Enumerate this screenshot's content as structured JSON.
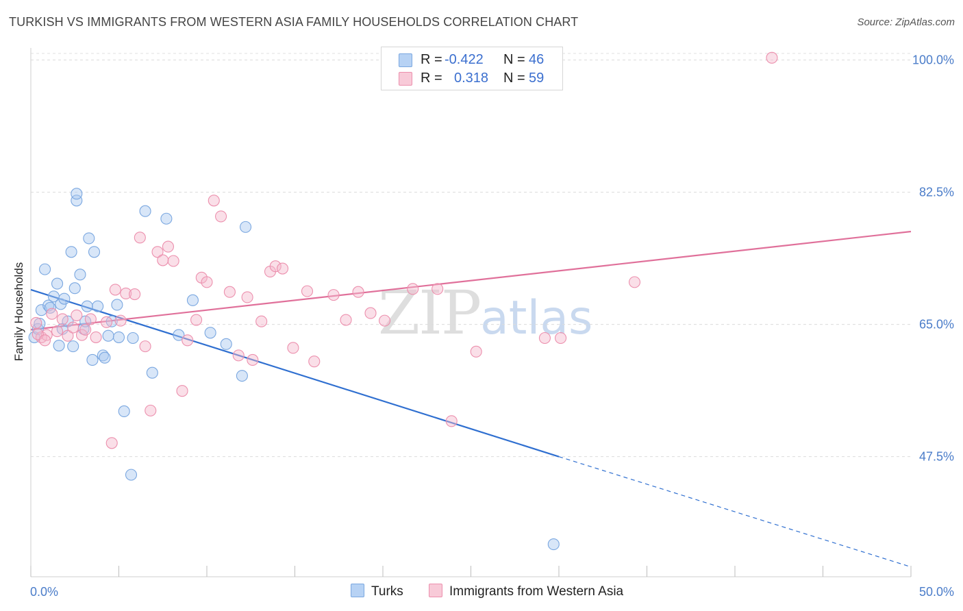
{
  "header": {
    "title": "TURKISH VS IMMIGRANTS FROM WESTERN ASIA FAMILY HOUSEHOLDS CORRELATION CHART",
    "source": "Source: ZipAtlas.com"
  },
  "watermark": {
    "zip": "ZIP",
    "atlas": "atlas"
  },
  "legend_top": {
    "rows": [
      {
        "r_label": "R =",
        "r_value": "-0.422",
        "n_label": "N =",
        "n_value": "46",
        "color": "#a9c8f0"
      },
      {
        "r_label": "R =",
        "r_value": "0.318",
        "n_label": "N =",
        "n_value": "59",
        "color": "#f5b8cb"
      }
    ]
  },
  "legend_bottom": {
    "items": [
      {
        "label": "Turks",
        "color": "#a9c8f0"
      },
      {
        "label": "Immigrants from Western Asia",
        "color": "#f5b8cb"
      }
    ]
  },
  "chart_data": {
    "type": "scatter",
    "ylabel": "Family Households",
    "xlim": [
      0,
      50
    ],
    "ylim": [
      31.6,
      101.6
    ],
    "x_tick_labels": [
      "0.0%",
      "50.0%"
    ],
    "y_ticks": [
      47.5,
      65.0,
      82.5,
      100.0
    ],
    "y_tick_labels": [
      "47.5%",
      "65.0%",
      "82.5%",
      "100.0%"
    ],
    "grid": "horizontal dashed",
    "legend_position": "top-center",
    "series": [
      {
        "name": "Turks",
        "color": "#a9c8f0",
        "stroke": "#7aa7e0",
        "trend_color": "#2f6fd0",
        "trend": {
          "x0": 0,
          "y0": 69.6,
          "x1": 30,
          "y1": 47.5,
          "dashed_to_x": 50,
          "dashed_to_y": 32.9
        },
        "points": [
          [
            0.2,
            63.3
          ],
          [
            0.4,
            64.4
          ],
          [
            0.5,
            65.1
          ],
          [
            0.6,
            66.9
          ],
          [
            0.8,
            72.3
          ],
          [
            1.0,
            67.5
          ],
          [
            1.1,
            67.2
          ],
          [
            1.3,
            68.7
          ],
          [
            1.5,
            70.4
          ],
          [
            1.6,
            62.2
          ],
          [
            1.7,
            67.7
          ],
          [
            1.8,
            64.4
          ],
          [
            1.9,
            68.4
          ],
          [
            2.1,
            65.4
          ],
          [
            2.3,
            74.6
          ],
          [
            2.4,
            62.1
          ],
          [
            2.5,
            69.8
          ],
          [
            2.6,
            81.4
          ],
          [
            2.6,
            82.3
          ],
          [
            2.8,
            71.6
          ],
          [
            3.0,
            64.4
          ],
          [
            3.1,
            65.4
          ],
          [
            3.2,
            67.4
          ],
          [
            3.3,
            76.4
          ],
          [
            3.5,
            60.3
          ],
          [
            3.6,
            74.6
          ],
          [
            3.8,
            67.4
          ],
          [
            4.1,
            60.9
          ],
          [
            4.2,
            60.6
          ],
          [
            4.4,
            63.5
          ],
          [
            4.6,
            65.4
          ],
          [
            4.9,
            67.6
          ],
          [
            5.0,
            63.3
          ],
          [
            5.3,
            53.5
          ],
          [
            5.7,
            45.1
          ],
          [
            5.8,
            63.2
          ],
          [
            6.5,
            80.0
          ],
          [
            6.9,
            58.6
          ],
          [
            7.7,
            79.0
          ],
          [
            8.4,
            63.6
          ],
          [
            9.2,
            68.2
          ],
          [
            10.2,
            63.9
          ],
          [
            11.1,
            62.4
          ],
          [
            12.0,
            58.2
          ],
          [
            12.2,
            77.9
          ],
          [
            29.7,
            35.9
          ]
        ]
      },
      {
        "name": "Immigrants from Western Asia",
        "color": "#f5b8cb",
        "stroke": "#ec8fad",
        "trend_color": "#e0709a",
        "trend": {
          "x0": 0,
          "y0": 64.3,
          "x1": 50,
          "y1": 77.3
        },
        "points": [
          [
            0.6,
            63.3
          ],
          [
            0.9,
            63.6
          ],
          [
            1.2,
            66.4
          ],
          [
            1.5,
            64.1
          ],
          [
            1.8,
            65.7
          ],
          [
            2.1,
            63.5
          ],
          [
            2.4,
            64.6
          ],
          [
            2.6,
            66.2
          ],
          [
            2.9,
            63.6
          ],
          [
            3.1,
            64.3
          ],
          [
            3.4,
            65.7
          ],
          [
            3.7,
            63.3
          ],
          [
            4.3,
            65.3
          ],
          [
            4.6,
            49.3
          ],
          [
            4.8,
            69.6
          ],
          [
            5.1,
            65.5
          ],
          [
            5.4,
            69.1
          ],
          [
            5.9,
            69.0
          ],
          [
            6.2,
            76.5
          ],
          [
            6.5,
            62.1
          ],
          [
            6.8,
            53.6
          ],
          [
            7.2,
            74.6
          ],
          [
            7.5,
            73.5
          ],
          [
            7.8,
            75.3
          ],
          [
            8.1,
            73.4
          ],
          [
            8.6,
            56.2
          ],
          [
            8.9,
            62.9
          ],
          [
            9.4,
            65.6
          ],
          [
            9.7,
            71.2
          ],
          [
            10.0,
            70.6
          ],
          [
            10.4,
            81.4
          ],
          [
            10.8,
            79.3
          ],
          [
            11.3,
            69.3
          ],
          [
            11.8,
            60.9
          ],
          [
            12.3,
            68.6
          ],
          [
            12.6,
            60.3
          ],
          [
            13.1,
            65.4
          ],
          [
            13.6,
            72.0
          ],
          [
            13.9,
            72.7
          ],
          [
            14.3,
            72.4
          ],
          [
            14.9,
            61.9
          ],
          [
            15.7,
            69.4
          ],
          [
            16.1,
            60.1
          ],
          [
            17.2,
            68.9
          ],
          [
            17.9,
            65.6
          ],
          [
            18.6,
            69.3
          ],
          [
            19.3,
            66.5
          ],
          [
            20.1,
            65.5
          ],
          [
            21.7,
            69.7
          ],
          [
            23.1,
            69.7
          ],
          [
            23.9,
            52.2
          ],
          [
            25.3,
            61.4
          ],
          [
            29.2,
            63.2
          ],
          [
            30.1,
            63.2
          ],
          [
            34.3,
            70.6
          ],
          [
            42.1,
            100.3
          ],
          [
            0.3,
            65.2
          ],
          [
            0.4,
            63.7
          ],
          [
            0.8,
            62.9
          ]
        ]
      }
    ]
  }
}
